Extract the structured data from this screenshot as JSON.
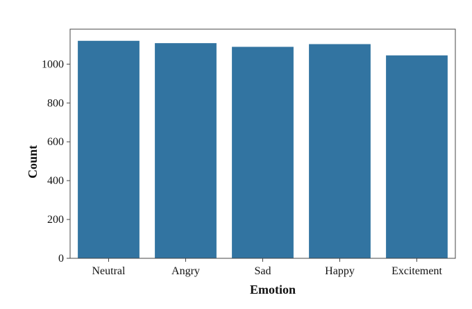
{
  "chart_data": {
    "type": "bar",
    "title": "",
    "xlabel": "Emotion",
    "ylabel": "Count",
    "categories": [
      "Neutral",
      "Angry",
      "Sad",
      "Happy",
      "Excitement"
    ],
    "values": [
      1120,
      1108,
      1089,
      1103,
      1045
    ],
    "ylim": [
      0,
      1180
    ],
    "yticks": [
      "0",
      "200",
      "400",
      "600",
      "800",
      "1000"
    ],
    "ytick_values": [
      0,
      200,
      400,
      600,
      800,
      1000
    ],
    "grid": false,
    "legend": "none",
    "colors": {
      "bar": "#3274a1",
      "axis": "#444444",
      "text": "#111111"
    }
  }
}
